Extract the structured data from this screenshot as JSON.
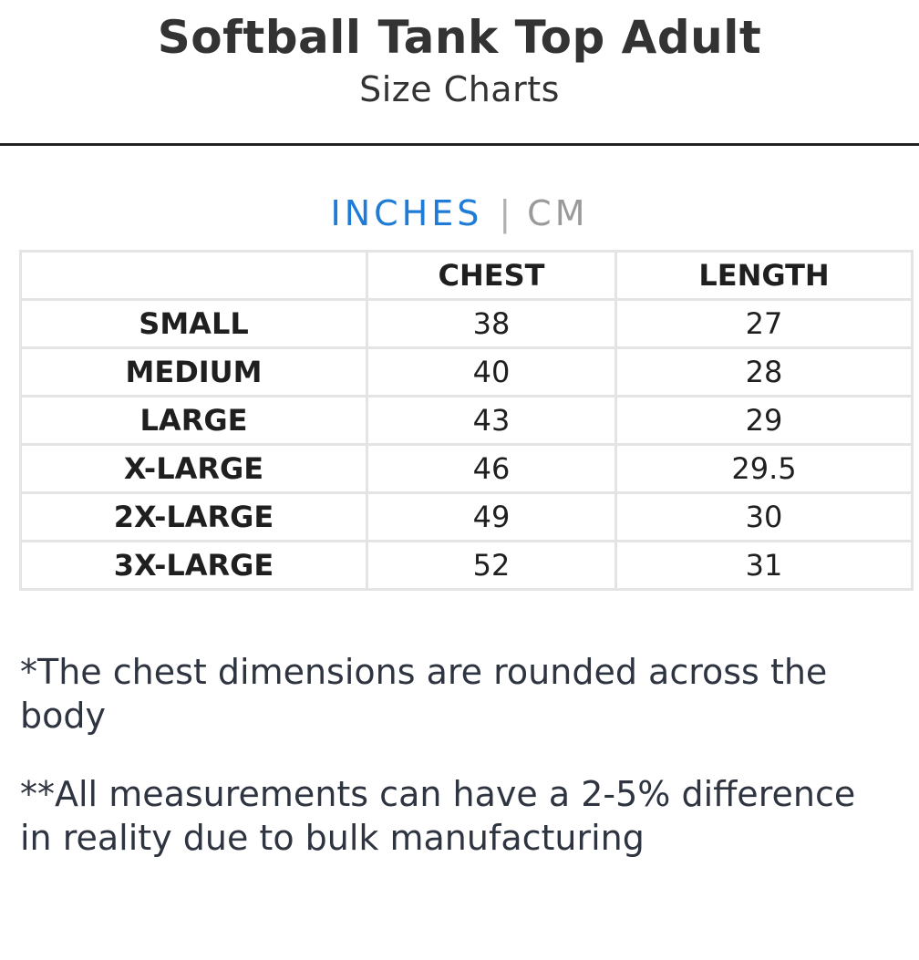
{
  "header": {
    "title": "Softball Tank Top Adult",
    "subtitle": "Size Charts"
  },
  "units": {
    "active": "INCHES",
    "separator": "|",
    "inactive": "CM",
    "active_color": "#1e7bd6"
  },
  "table": {
    "columns": [
      "",
      "CHEST",
      "LENGTH"
    ],
    "rows": [
      {
        "size": "SMALL",
        "chest": "38",
        "length": "27"
      },
      {
        "size": "MEDIUM",
        "chest": "40",
        "length": "28"
      },
      {
        "size": "LARGE",
        "chest": "43",
        "length": "29"
      },
      {
        "size": "X-LARGE",
        "chest": "46",
        "length": "29.5"
      },
      {
        "size": "2X-LARGE",
        "chest": "49",
        "length": "30"
      },
      {
        "size": "3X-LARGE",
        "chest": "52",
        "length": "31"
      }
    ]
  },
  "notes": [
    "*The chest dimensions are rounded across the body",
    "**All measurements can have a 2-5% difference in reality due to bulk manufacturing"
  ]
}
